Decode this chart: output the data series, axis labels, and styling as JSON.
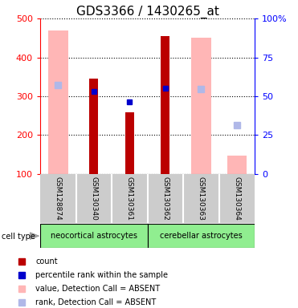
{
  "title": "GDS3366 / 1430265_at",
  "samples": [
    "GSM128874",
    "GSM130340",
    "GSM130361",
    "GSM130362",
    "GSM130363",
    "GSM130364"
  ],
  "cell_type_groups": [
    {
      "label": "neocortical astrocytes",
      "start": 0,
      "end": 3,
      "color": "#90ee90"
    },
    {
      "label": "cerebellar astrocytes",
      "start": 3,
      "end": 6,
      "color": "#90ee90"
    }
  ],
  "count_values": [
    null,
    345,
    258,
    455,
    null,
    null
  ],
  "count_color": "#bb0000",
  "value_absent": [
    470,
    null,
    null,
    null,
    450,
    148
  ],
  "value_absent_color": "#ffb6b6",
  "rank_absent": [
    328,
    null,
    null,
    null,
    318,
    225
  ],
  "rank_absent_color": "#b0b8e8",
  "percentile_values": [
    null,
    312,
    285,
    321,
    null,
    null
  ],
  "percentile_color": "#0000cc",
  "ylim_left": [
    100,
    500
  ],
  "ylim_right": [
    0,
    100
  ],
  "yticks_left": [
    100,
    200,
    300,
    400,
    500
  ],
  "yticks_right": [
    0,
    25,
    50,
    75,
    100
  ],
  "ylabel_right_labels": [
    "0",
    "25",
    "50",
    "75",
    "100%"
  ],
  "count_bar_width": 0.25,
  "absent_bar_width": 0.55,
  "sample_bg_color": "#cccccc",
  "plot_bg": "#ffffff",
  "title_fontsize": 11,
  "legend_items": [
    {
      "color": "#bb0000",
      "label": "count"
    },
    {
      "color": "#0000cc",
      "label": "percentile rank within the sample"
    },
    {
      "color": "#ffb6b6",
      "label": "value, Detection Call = ABSENT"
    },
    {
      "color": "#b0b8e8",
      "label": "rank, Detection Call = ABSENT"
    }
  ]
}
